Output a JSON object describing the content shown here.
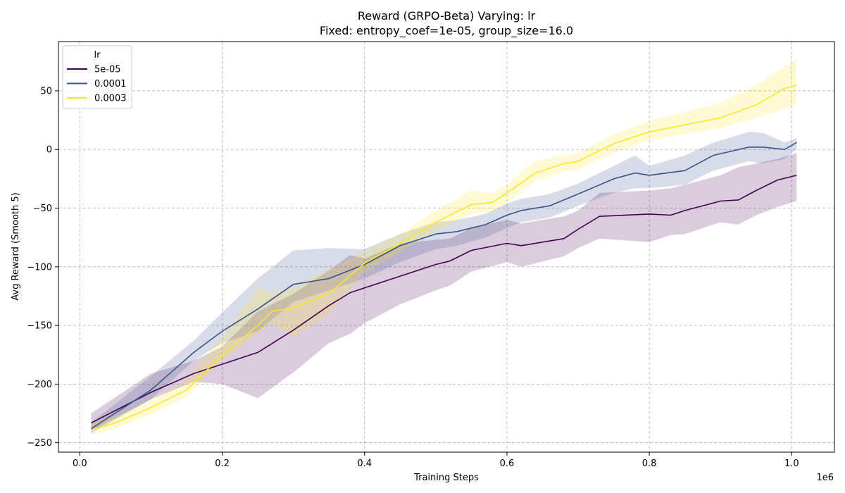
{
  "chart_data": {
    "type": "line",
    "title": "Reward (GRPO-Beta) Varying: lr",
    "subtitle": "Fixed: entropy_coef=1e-05, group_size=16.0",
    "xlabel": "Training Steps",
    "ylabel": "Avg Reward (Smooth 5)",
    "x_offset_text": "1e6",
    "xlim": [
      -30000,
      1060000
    ],
    "ylim": [
      -258,
      92
    ],
    "xticks": [
      0,
      200000,
      400000,
      600000,
      800000,
      1000000
    ],
    "xtick_labels": [
      "0.0",
      "0.2",
      "0.4",
      "0.6",
      "0.8",
      "1.0"
    ],
    "yticks": [
      -250,
      -200,
      -150,
      -100,
      -50,
      0,
      50
    ],
    "ytick_labels": [
      "−250",
      "−200",
      "−150",
      "−100",
      "−50",
      "0",
      "50"
    ],
    "grid": true,
    "legend": {
      "title": "lr",
      "placement": "top-left"
    },
    "series": [
      {
        "name": "5e-05",
        "color": "#440154",
        "x": [
          16000,
          100000,
          160000,
          200000,
          250000,
          300000,
          350000,
          380000,
          400000,
          450000,
          500000,
          520000,
          550000,
          600000,
          620000,
          680000,
          700000,
          730000,
          800000,
          830000,
          850000,
          900000,
          925000,
          950000,
          980000,
          1007000
        ],
        "y": [
          -233,
          -207,
          -191,
          -183,
          -173,
          -154,
          -133,
          -122,
          -118,
          -108,
          -98,
          -95,
          -86,
          -80,
          -82,
          -76,
          -68,
          -57,
          -55,
          -56,
          -52,
          -44,
          -43,
          -35,
          -26,
          -22
        ],
        "lower": [
          -240,
          -213,
          -198,
          -200,
          -212,
          -190,
          -165,
          -157,
          -148,
          -132,
          -120,
          -116,
          -104,
          -96,
          -100,
          -91,
          -84,
          -76,
          -79,
          -73,
          -72,
          -62,
          -64,
          -56,
          -49,
          -44
        ],
        "upper": [
          -225,
          -191,
          -180,
          -168,
          -138,
          -123,
          -103,
          -90,
          -93,
          -80,
          -77,
          -76,
          -67,
          -60,
          -63,
          -57,
          -52,
          -37,
          -35,
          -33,
          -30,
          -22,
          -15,
          -12,
          -8,
          -3
        ]
      },
      {
        "name": "0.0001",
        "color": "#3b528b",
        "x": [
          16000,
          100000,
          160000,
          200000,
          250000,
          300000,
          350000,
          400000,
          450000,
          500000,
          530000,
          570000,
          600000,
          620000,
          660000,
          700000,
          750000,
          780000,
          800000,
          850000,
          890000,
          940000,
          960000,
          990000,
          1007000
        ],
        "y": [
          -238,
          -205,
          -173,
          -155,
          -136,
          -115,
          -110,
          -98,
          -82,
          -72,
          -70,
          -64,
          -56,
          -52,
          -48,
          -38,
          -25,
          -20,
          -22,
          -18,
          -5,
          2,
          2,
          0,
          6
        ],
        "lower": [
          -242,
          -213,
          -180,
          -165,
          -155,
          -130,
          -120,
          -110,
          -96,
          -85,
          -82,
          -75,
          -67,
          -62,
          -58,
          -48,
          -37,
          -33,
          -33,
          -30,
          -18,
          -10,
          -12,
          -8,
          0
        ],
        "upper": [
          -233,
          -193,
          -163,
          -139,
          -110,
          -86,
          -84,
          -85,
          -72,
          -62,
          -60,
          -55,
          -46,
          -42,
          -38,
          -29,
          -14,
          -5,
          -14,
          -5,
          6,
          15,
          14,
          6,
          10
        ]
      },
      {
        "name": "0.0003",
        "color": "#fde725",
        "x": [
          16000,
          50000,
          100000,
          150000,
          200000,
          250000,
          270000,
          300000,
          350000,
          400000,
          450000,
          500000,
          550000,
          580000,
          600000,
          640000,
          680000,
          700000,
          750000,
          800000,
          850000,
          900000,
          950000,
          990000,
          1007000
        ],
        "y": [
          -239,
          -233,
          -220,
          -205,
          -175,
          -150,
          -138,
          -135,
          -123,
          -97,
          -80,
          -62,
          -47,
          -45,
          -37,
          -20,
          -12,
          -10,
          5,
          15,
          21,
          27,
          38,
          52,
          55
        ],
        "lower": [
          -243,
          -238,
          -226,
          -211,
          -180,
          -157,
          -148,
          -160,
          -140,
          -105,
          -87,
          -70,
          -55,
          -53,
          -45,
          -27,
          -19,
          -17,
          -3,
          8,
          13,
          18,
          27,
          35,
          38
        ],
        "upper": [
          -233,
          -227,
          -214,
          -196,
          -160,
          -118,
          -122,
          -118,
          -102,
          -87,
          -72,
          -52,
          -35,
          -37,
          -30,
          -10,
          -5,
          -3,
          13,
          24,
          32,
          40,
          55,
          70,
          77
        ]
      }
    ]
  }
}
